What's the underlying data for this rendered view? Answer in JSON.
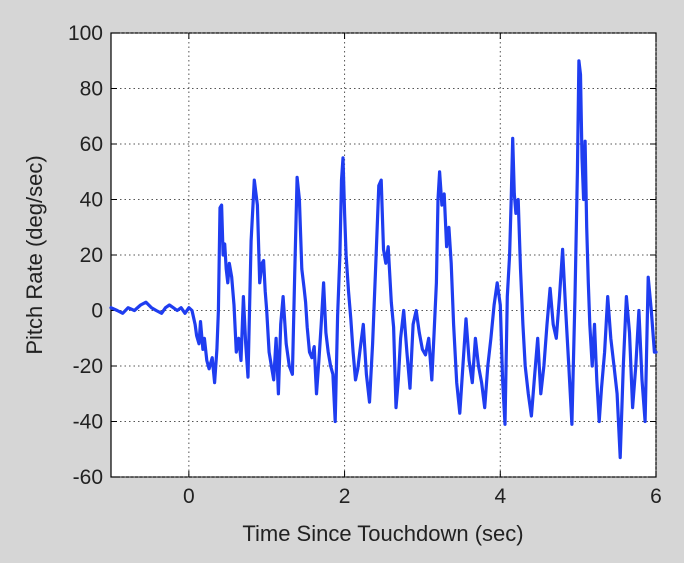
{
  "chart_data": {
    "type": "line",
    "title": "",
    "xlabel": "Time Since Touchdown (sec)",
    "ylabel": "Pitch Rate (deg/sec)",
    "xlim": [
      -1,
      6
    ],
    "ylim": [
      -60,
      100
    ],
    "xticks": [
      0,
      2,
      4,
      6
    ],
    "yticks": [
      -60,
      -40,
      -20,
      0,
      20,
      40,
      60,
      80,
      100
    ],
    "xtick_labels": [
      "0",
      "2",
      "4",
      "6"
    ],
    "ytick_labels": [
      "-60",
      "-40",
      "-20",
      "0",
      "20",
      "40",
      "60",
      "80",
      "100"
    ],
    "grid": true,
    "grid_style": "dotted",
    "legend": "none",
    "series": [
      {
        "color": "#1f3df0",
        "x": [
          -1.0,
          -0.92,
          -0.85,
          -0.78,
          -0.7,
          -0.62,
          -0.55,
          -0.48,
          -0.42,
          -0.35,
          -0.3,
          -0.25,
          -0.2,
          -0.15,
          -0.1,
          -0.05,
          0.0,
          0.04,
          0.08,
          0.1,
          0.13,
          0.15,
          0.18,
          0.2,
          0.23,
          0.26,
          0.3,
          0.33,
          0.36,
          0.38,
          0.4,
          0.42,
          0.44,
          0.46,
          0.48,
          0.5,
          0.52,
          0.55,
          0.58,
          0.61,
          0.64,
          0.67,
          0.7,
          0.73,
          0.76,
          0.8,
          0.84,
          0.88,
          0.91,
          0.94,
          0.96,
          0.98,
          1.0,
          1.03,
          1.06,
          1.09,
          1.12,
          1.15,
          1.18,
          1.21,
          1.25,
          1.29,
          1.33,
          1.36,
          1.39,
          1.42,
          1.45,
          1.48,
          1.5,
          1.52,
          1.55,
          1.58,
          1.61,
          1.64,
          1.67,
          1.7,
          1.73,
          1.76,
          1.79,
          1.82,
          1.85,
          1.88,
          1.91,
          1.94,
          1.96,
          1.98,
          2.0,
          2.02,
          2.05,
          2.08,
          2.11,
          2.14,
          2.17,
          2.2,
          2.24,
          2.28,
          2.32,
          2.36,
          2.4,
          2.44,
          2.47,
          2.5,
          2.53,
          2.56,
          2.6,
          2.63,
          2.66,
          2.69,
          2.72,
          2.76,
          2.8,
          2.84,
          2.88,
          2.92,
          2.96,
          3.0,
          3.04,
          3.08,
          3.12,
          3.15,
          3.18,
          3.2,
          3.22,
          3.25,
          3.28,
          3.31,
          3.34,
          3.37,
          3.4,
          3.44,
          3.48,
          3.52,
          3.56,
          3.6,
          3.64,
          3.68,
          3.72,
          3.76,
          3.8,
          3.84,
          3.88,
          3.92,
          3.96,
          4.0,
          4.03,
          4.06,
          4.09,
          4.12,
          4.14,
          4.16,
          4.18,
          4.2,
          4.23,
          4.26,
          4.29,
          4.32,
          4.36,
          4.4,
          4.44,
          4.48,
          4.52,
          4.56,
          4.6,
          4.64,
          4.68,
          4.72,
          4.76,
          4.8,
          4.84,
          4.88,
          4.92,
          4.96,
          4.99,
          5.01,
          5.03,
          5.05,
          5.07,
          5.09,
          5.11,
          5.13,
          5.15,
          5.18,
          5.21,
          5.24,
          5.27,
          5.3,
          5.34,
          5.38,
          5.42,
          5.46,
          5.5,
          5.54,
          5.58,
          5.62,
          5.66,
          5.7,
          5.74,
          5.78,
          5.82,
          5.86,
          5.9,
          5.94,
          5.98,
          6.0
        ],
        "y": [
          1,
          0,
          -1,
          1,
          0,
          2,
          3,
          1,
          0,
          -1,
          1,
          2,
          1,
          0,
          1,
          -1,
          1,
          0,
          -5,
          -9,
          -12,
          -4,
          -14,
          -10,
          -18,
          -21,
          -17,
          -26,
          -14,
          0,
          37,
          38,
          20,
          24,
          15,
          10,
          17,
          12,
          2,
          -15,
          -10,
          -18,
          5,
          -12,
          -24,
          25,
          47,
          38,
          10,
          17,
          18,
          7,
          0,
          -15,
          -20,
          -25,
          -10,
          -30,
          -5,
          5,
          -12,
          -20,
          -23,
          13,
          48,
          40,
          15,
          8,
          3,
          -6,
          -15,
          -17,
          -13,
          -30,
          -18,
          -5,
          10,
          -8,
          -15,
          -20,
          -23,
          -40,
          -2,
          20,
          47,
          55,
          35,
          20,
          7,
          -3,
          -15,
          -25,
          -21,
          -14,
          -5,
          -23,
          -33,
          -12,
          16,
          45,
          47,
          22,
          17,
          23,
          3,
          -6,
          -35,
          -25,
          -10,
          0,
          -15,
          -28,
          -5,
          0,
          -8,
          -14,
          -16,
          -10,
          -25,
          -8,
          10,
          40,
          50,
          38,
          42,
          23,
          30,
          17,
          -5,
          -26,
          -37,
          -20,
          -3,
          -18,
          -26,
          -10,
          -20,
          -26,
          -35,
          -20,
          -10,
          2,
          10,
          2,
          -25,
          -41,
          5,
          20,
          40,
          62,
          42,
          35,
          40,
          15,
          -5,
          -20,
          -30,
          -38,
          -24,
          -10,
          -30,
          -20,
          -5,
          8,
          -5,
          -10,
          5,
          22,
          0,
          -20,
          -41,
          5,
          50,
          90,
          85,
          55,
          40,
          61,
          30,
          10,
          -5,
          -20,
          -5,
          -25,
          -40,
          -28,
          -15,
          5,
          -10,
          -20,
          -30,
          -53,
          -20,
          5,
          -8,
          -35,
          -20,
          0,
          -25,
          -40,
          12,
          0,
          -15,
          -15
        ]
      }
    ]
  }
}
